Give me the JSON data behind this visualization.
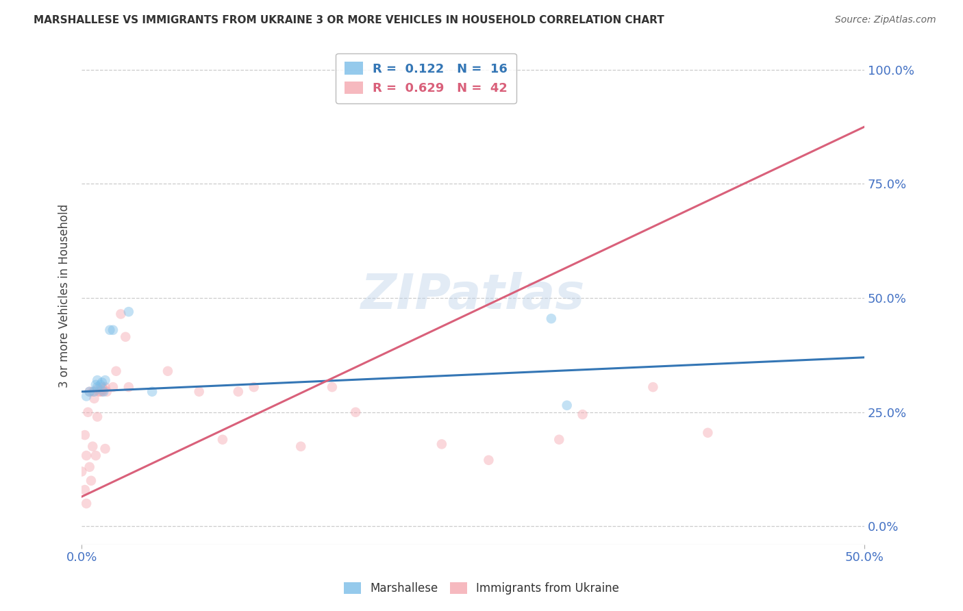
{
  "title": "MARSHALLESE VS IMMIGRANTS FROM UKRAINE 3 OR MORE VEHICLES IN HOUSEHOLD CORRELATION CHART",
  "source": "Source: ZipAtlas.com",
  "xlabel_ticks": [
    "0.0%",
    "50.0%"
  ],
  "ylabel": "3 or more Vehicles in Household",
  "ylabel_ticks": [
    "0.0%",
    "25.0%",
    "50.0%",
    "75.0%",
    "100.0%"
  ],
  "xlim": [
    0.0,
    0.5
  ],
  "ylim": [
    -0.04,
    1.05
  ],
  "yticks": [
    0.0,
    0.25,
    0.5,
    0.75,
    1.0
  ],
  "watermark": "ZIPatlas",
  "marshallese_R": 0.122,
  "marshallese_N": 16,
  "ukraine_R": 0.629,
  "ukraine_N": 42,
  "marshallese_color": "#7bbde8",
  "ukraine_color": "#f4a8b0",
  "marshallese_line_color": "#3476b5",
  "ukraine_line_color": "#d9607a",
  "marshallese_x": [
    0.003,
    0.005,
    0.008,
    0.009,
    0.01,
    0.01,
    0.012,
    0.013,
    0.014,
    0.015,
    0.018,
    0.02,
    0.03,
    0.045,
    0.3,
    0.31
  ],
  "marshallese_y": [
    0.285,
    0.295,
    0.295,
    0.31,
    0.305,
    0.32,
    0.31,
    0.315,
    0.295,
    0.32,
    0.43,
    0.43,
    0.47,
    0.295,
    0.455,
    0.265
  ],
  "ukraine_x": [
    0.0,
    0.002,
    0.002,
    0.003,
    0.003,
    0.004,
    0.005,
    0.005,
    0.006,
    0.007,
    0.007,
    0.008,
    0.009,
    0.01,
    0.01,
    0.011,
    0.012,
    0.013,
    0.013,
    0.014,
    0.015,
    0.015,
    0.016,
    0.02,
    0.022,
    0.025,
    0.028,
    0.03,
    0.055,
    0.075,
    0.09,
    0.1,
    0.11,
    0.14,
    0.16,
    0.175,
    0.23,
    0.26,
    0.305,
    0.32,
    0.365,
    0.4
  ],
  "ukraine_y": [
    0.12,
    0.08,
    0.2,
    0.05,
    0.155,
    0.25,
    0.13,
    0.295,
    0.1,
    0.175,
    0.295,
    0.28,
    0.155,
    0.24,
    0.3,
    0.295,
    0.295,
    0.305,
    0.295,
    0.3,
    0.305,
    0.17,
    0.295,
    0.305,
    0.34,
    0.465,
    0.415,
    0.305,
    0.34,
    0.295,
    0.19,
    0.295,
    0.305,
    0.175,
    0.305,
    0.25,
    0.18,
    0.145,
    0.19,
    0.245,
    0.305,
    0.205
  ],
  "marshallese_line_x": [
    0.0,
    0.5
  ],
  "marshallese_line_y": [
    0.295,
    0.37
  ],
  "ukraine_line_x": [
    0.0,
    0.5
  ],
  "ukraine_line_y": [
    0.065,
    0.875
  ],
  "grid_color": "#cccccc",
  "grid_linestyle": "--",
  "background_color": "#ffffff",
  "marker_size": 110,
  "marker_alpha": 0.45,
  "line_width": 2.2
}
